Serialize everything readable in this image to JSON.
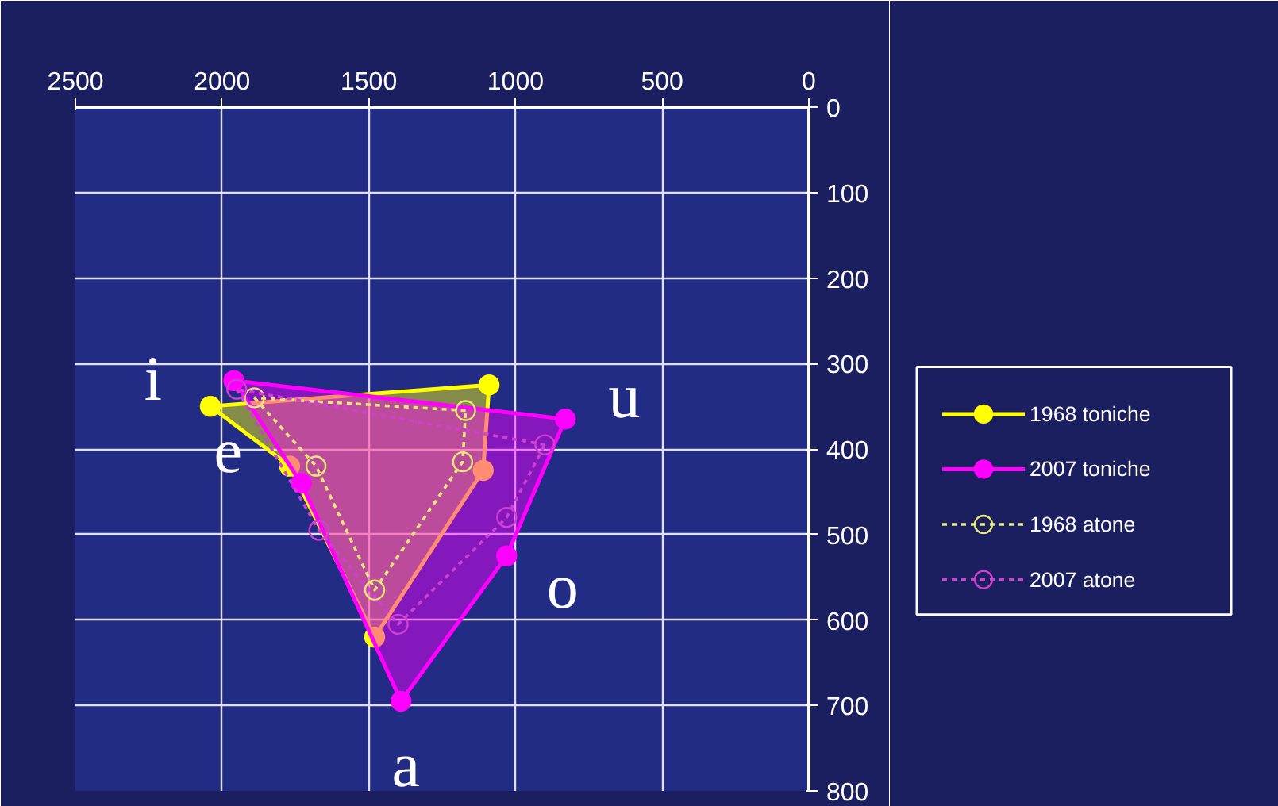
{
  "chart_data": {
    "type": "area",
    "xlim": [
      2500,
      0
    ],
    "xticks": [
      2500,
      2000,
      1500,
      1000,
      500,
      0
    ],
    "ylim": [
      800,
      0
    ],
    "yticks": [
      0,
      100,
      200,
      300,
      400,
      500,
      600,
      700,
      800
    ],
    "grid": true,
    "legend": "right",
    "marker": "circle",
    "series": [
      {
        "name": "1968 toniche",
        "color": "#ffff00",
        "line_style": "solid",
        "x": [
          2040,
          1770,
          1480,
          1110,
          1090
        ],
        "values": [
          350,
          420,
          620,
          425,
          325
        ]
      },
      {
        "name": "2007 toniche",
        "color": "#ff00ff",
        "line_style": "solid",
        "x": [
          1960,
          1730,
          1390,
          1030,
          830
        ],
        "values": [
          320,
          440,
          695,
          525,
          365
        ]
      },
      {
        "name": "1968 atone",
        "type": "line",
        "color": "#e8e878",
        "line_style": "dotted",
        "x": [
          1890,
          1680,
          1480,
          1180,
          1170
        ],
        "values": [
          340,
          420,
          565,
          415,
          355
        ]
      },
      {
        "name": "2007 atone",
        "type": "line",
        "color": "#d040d0",
        "line_style": "dotted",
        "x": [
          1950,
          1670,
          1400,
          1030,
          900
        ],
        "values": [
          330,
          495,
          605,
          480,
          395
        ]
      }
    ],
    "annotations": [
      {
        "text": "i",
        "x": 2040,
        "y": 350
      },
      {
        "text": "u",
        "x": 830,
        "y": 365
      },
      {
        "text": "e",
        "x": 1770,
        "y": 420
      },
      {
        "text": "o",
        "x": 1030,
        "y": 525
      },
      {
        "text": "a",
        "x": 1390,
        "y": 695
      }
    ]
  }
}
